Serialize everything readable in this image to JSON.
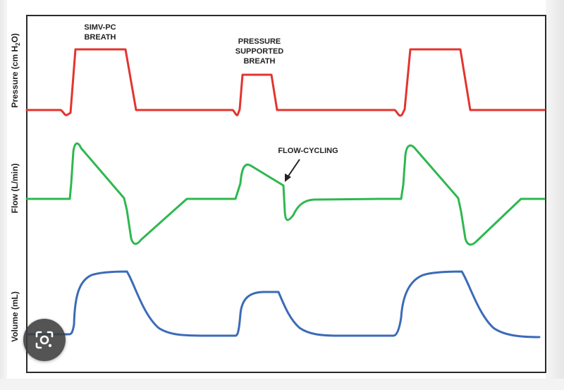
{
  "figure": {
    "panels": [
      {
        "key": "pressure",
        "ylabel": "Pressure (cm H",
        "ylabel_sub": "2",
        "ylabel_end": "O)",
        "color": "#e3342f"
      },
      {
        "key": "flow",
        "ylabel": "Flow (L/min)",
        "ylabel_sub": "",
        "ylabel_end": "",
        "color": "#2eb84f"
      },
      {
        "key": "volume",
        "ylabel": "Volume (mL)",
        "ylabel_sub": "",
        "ylabel_end": "",
        "color": "#3b6bb8"
      }
    ],
    "annotations": {
      "simv_line1": "SIMV-PC",
      "simv_line2": "BREATH",
      "ps_line1": "PRESSURE",
      "ps_line2": "SUPPORTED",
      "ps_line3": "BREATH",
      "flow_cycling": "FLOW-CYCLING"
    }
  },
  "overlay": {
    "lens_button": "camera-lens-icon"
  }
}
